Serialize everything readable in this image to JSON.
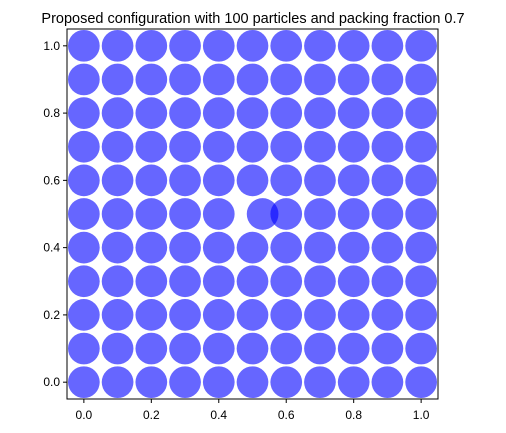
{
  "chart_data": {
    "type": "scatter",
    "title": "Proposed configuration with 100 particles and packing fraction 0.7",
    "xlabel": "",
    "ylabel": "",
    "xlim": [
      -0.05,
      1.05
    ],
    "ylim": [
      -0.05,
      1.05
    ],
    "x_ticks": [
      "0.0",
      "0.2",
      "0.4",
      "0.6",
      "0.8",
      "1.0"
    ],
    "y_ticks": [
      "0.0",
      "0.2",
      "0.4",
      "0.6",
      "0.8",
      "1.0"
    ],
    "grid": false,
    "legend": "none",
    "particle_radius": 0.047,
    "particle_color": "#0000ff",
    "particle_alpha": 0.6,
    "grid_x": [
      0.0,
      0.1,
      0.2,
      0.3,
      0.4,
      0.5,
      0.6,
      0.7,
      0.8,
      0.9,
      1.0
    ],
    "grid_y": [
      0.0,
      0.1,
      0.2,
      0.3,
      0.4,
      0.5,
      0.6,
      0.7,
      0.8,
      0.9,
      1.0
    ],
    "absent_site": [
      0.5,
      0.5
    ],
    "displaced_particle": [
      0.53,
      0.5
    ]
  }
}
